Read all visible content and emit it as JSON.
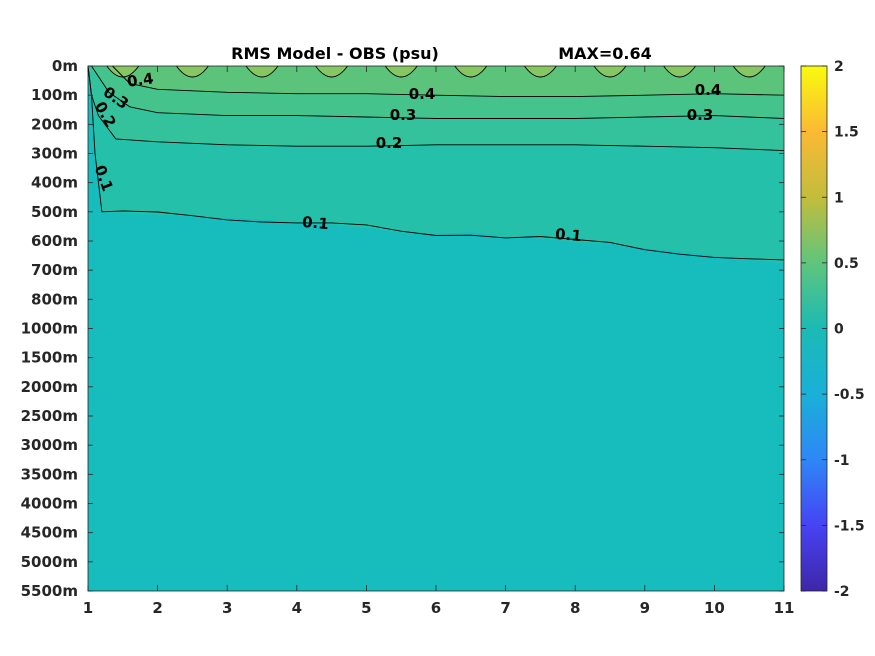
{
  "chart_data": {
    "type": "heatmap",
    "title": "RMS Model - OBS (psu)",
    "annotation": "MAX=0.64",
    "xlabel": "",
    "ylabel": "",
    "x_ticks": [
      "1",
      "2",
      "3",
      "4",
      "5",
      "6",
      "7",
      "8",
      "9",
      "10",
      "11"
    ],
    "xlim": [
      1,
      11
    ],
    "y_ticks": [
      "0m",
      "100m",
      "200m",
      "300m",
      "400m",
      "500m",
      "600m",
      "700m",
      "800m",
      "1000m",
      "1500m",
      "2000m",
      "2500m",
      "3000m",
      "3500m",
      "4000m",
      "4500m",
      "5000m",
      "5500m"
    ],
    "y_reversed": true,
    "colorbar": {
      "range": [
        -2,
        2
      ],
      "ticks": [
        "2",
        "1.5",
        "1",
        "0.5",
        "0",
        "-0.5",
        "-1",
        "-1.5",
        "-2"
      ],
      "colormap": "parula",
      "colors": [
        "#3e26a8",
        "#4743f4",
        "#2e87f7",
        "#1ab0d8",
        "#2ec4a6",
        "#91c75e",
        "#e2b73b",
        "#fcd12c",
        "#f9fb0e"
      ]
    },
    "contours": [
      {
        "level": 0.1,
        "labels": [
          "0.1",
          "0.1",
          "0.1"
        ],
        "depth_m": [
          [
            1.0,
            0
          ],
          [
            1.05,
            100
          ],
          [
            1.1,
            300
          ],
          [
            1.2,
            500
          ],
          [
            1.5,
            505
          ],
          [
            2.0,
            510
          ],
          [
            2.5,
            515
          ],
          [
            3.0,
            520
          ],
          [
            3.5,
            525
          ],
          [
            4.0,
            535
          ],
          [
            4.5,
            545
          ],
          [
            5.0,
            555
          ],
          [
            5.5,
            570
          ],
          [
            6.0,
            575
          ],
          [
            6.5,
            570
          ],
          [
            7.0,
            585
          ],
          [
            7.5,
            590
          ],
          [
            8.0,
            605
          ],
          [
            8.5,
            610
          ],
          [
            9.0,
            625
          ],
          [
            9.5,
            635
          ],
          [
            10.0,
            650
          ],
          [
            10.5,
            665
          ],
          [
            11.0,
            675
          ]
        ]
      },
      {
        "level": 0.2,
        "labels": [
          "0.2",
          "0.2"
        ],
        "depth_m": [
          [
            1.0,
            0
          ],
          [
            1.05,
            100
          ],
          [
            1.15,
            170
          ],
          [
            1.4,
            250
          ],
          [
            1.7,
            255
          ],
          [
            2.0,
            260
          ],
          [
            3.0,
            270
          ],
          [
            4.0,
            275
          ],
          [
            5.0,
            275
          ],
          [
            6.0,
            270
          ],
          [
            7.0,
            270
          ],
          [
            8.0,
            270
          ],
          [
            9.0,
            275
          ],
          [
            10.0,
            280
          ],
          [
            11.0,
            290
          ]
        ]
      },
      {
        "level": 0.3,
        "labels": [
          "0.3",
          "0.3",
          "0.3"
        ],
        "depth_m": [
          [
            1.05,
            0
          ],
          [
            1.3,
            90
          ],
          [
            1.6,
            140
          ],
          [
            2.0,
            160
          ],
          [
            3.0,
            170
          ],
          [
            4.0,
            170
          ],
          [
            5.0,
            175
          ],
          [
            6.0,
            180
          ],
          [
            7.0,
            180
          ],
          [
            8.0,
            180
          ],
          [
            9.0,
            175
          ],
          [
            10.0,
            170
          ],
          [
            11.0,
            180
          ]
        ]
      },
      {
        "level": 0.4,
        "labels": [
          "0.4",
          "0.4",
          "0.4"
        ],
        "depth_m": [
          [
            1.35,
            0
          ],
          [
            1.6,
            60
          ],
          [
            2.0,
            80
          ],
          [
            3.0,
            90
          ],
          [
            4.0,
            95
          ],
          [
            5.0,
            95
          ],
          [
            6.0,
            100
          ],
          [
            7.0,
            105
          ],
          [
            8.0,
            105
          ],
          [
            9.0,
            100
          ],
          [
            10.0,
            95
          ],
          [
            11.0,
            100
          ]
        ]
      }
    ],
    "surface_maxima_x": [
      1.5,
      2.5,
      3.5,
      4.5,
      5.5,
      6.5,
      7.5,
      8.5,
      9.5,
      10.5
    ]
  }
}
